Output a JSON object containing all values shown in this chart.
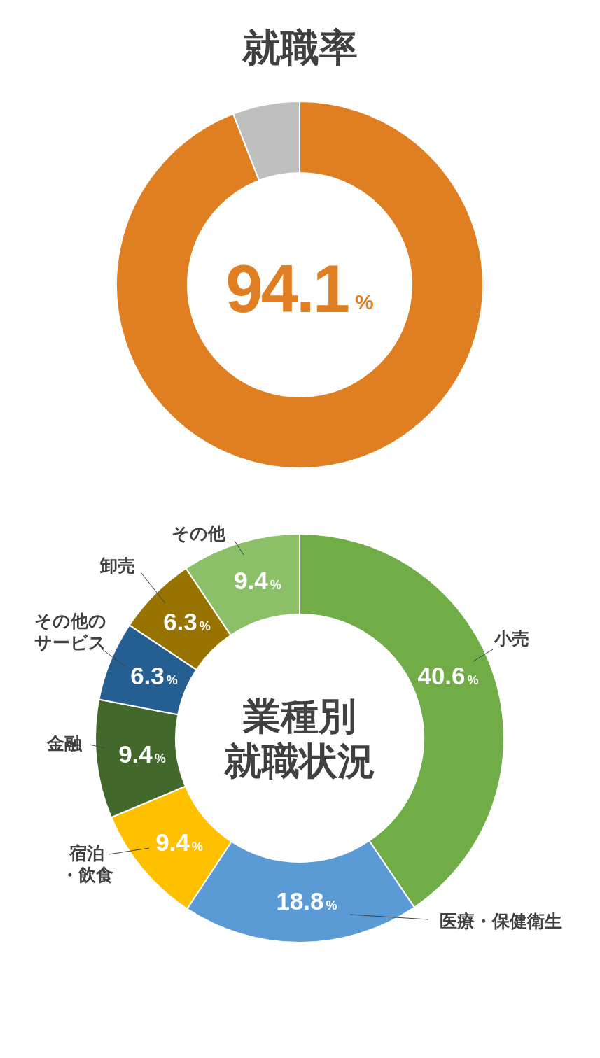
{
  "chart_data": [
    {
      "type": "donut",
      "title": "就職率",
      "categories": [
        null,
        null
      ],
      "values": [
        94.1,
        5.9
      ],
      "colors": [
        "#e07e22",
        "#bfbfbf"
      ],
      "value_labels": [
        "94.1%",
        null
      ]
    },
    {
      "type": "donut",
      "title": "業種別就職状況",
      "categories": [
        "小売",
        "医療・保健衛生",
        "宿泊・飲食",
        "金融",
        "その他のサービス",
        "卸売",
        "その他"
      ],
      "values": [
        40.6,
        18.8,
        9.4,
        9.4,
        6.3,
        6.3,
        9.4
      ],
      "colors": [
        "#70ad47",
        "#5b9bd5",
        "#ffc000",
        "#43682b",
        "#255e91",
        "#997300",
        "#8cc068"
      ],
      "value_labels": [
        "40.6%",
        "18.8%",
        "9.4%",
        "9.4%",
        "6.3%",
        "6.3%",
        "9.4%"
      ]
    }
  ]
}
